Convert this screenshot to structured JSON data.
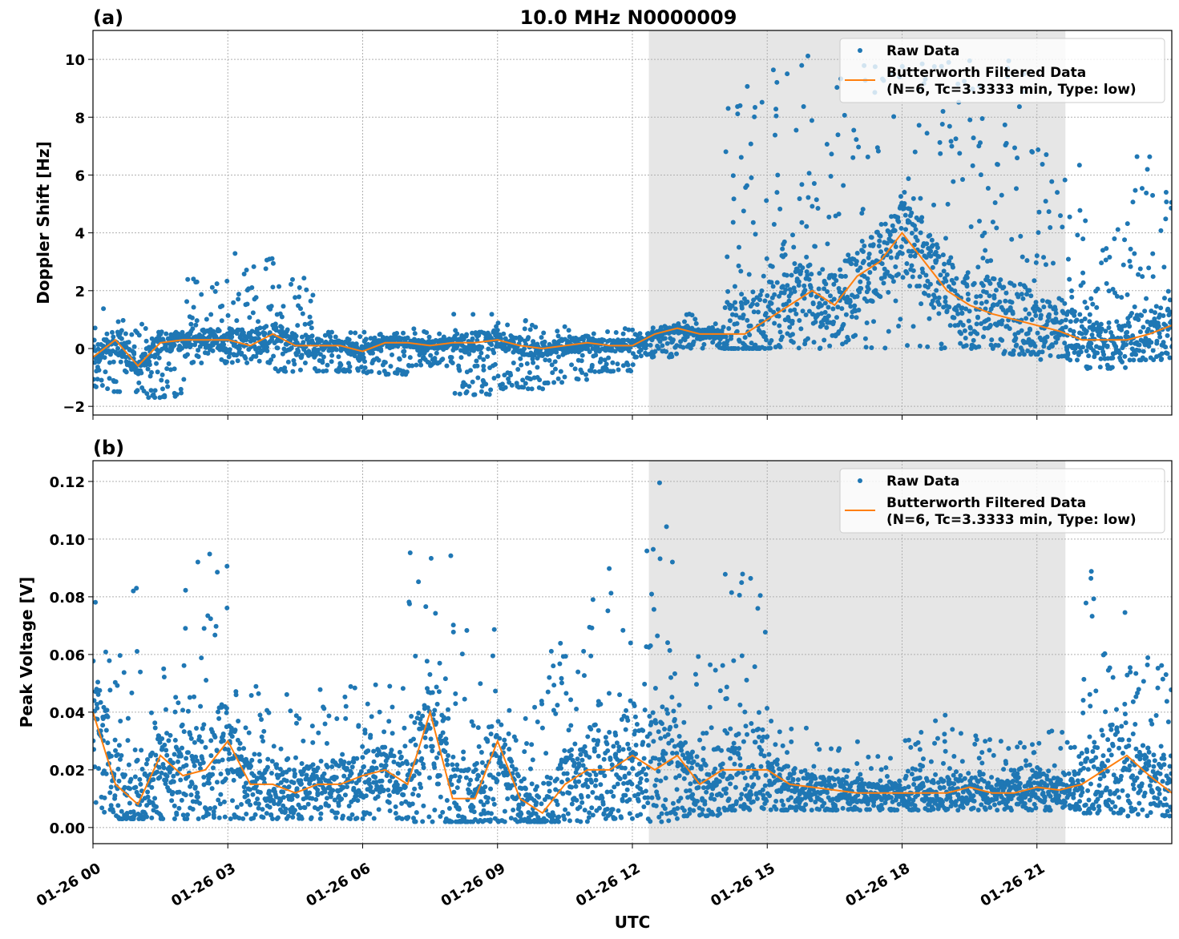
{
  "chart_data": [
    {
      "type": "scatter",
      "panel_label": "(a)",
      "title": "10.0 MHz N0000009",
      "xlabel": "",
      "ylabel": "Doppler Shift [Hz]",
      "xlim": [
        "01-26 00:00",
        "01-27 00:00"
      ],
      "ylim": [
        -2.3,
        11
      ],
      "yticks": [
        -2,
        0,
        2,
        4,
        6,
        8,
        10
      ],
      "ytick_labels": [
        "−2",
        "0",
        "2",
        "4",
        "6",
        "8",
        "10"
      ],
      "grid": true,
      "legend_placement": "top-right",
      "shaded_interval": [
        "01-26 12:22",
        "01-26 21:38"
      ],
      "colors": {
        "raw": "#1f77b4",
        "filtered": "#ff7f0e",
        "shade": "#e6e6e6"
      },
      "series": [
        {
          "name": "Raw Data",
          "kind": "points",
          "note_envelope_hours": [
            0,
            1,
            2,
            3,
            4,
            5,
            6,
            7,
            8,
            9,
            10,
            11,
            12,
            13,
            14,
            15,
            16,
            17,
            18,
            19,
            20,
            21,
            22,
            23
          ],
          "min": [
            -1.5,
            -1.7,
            -0.5,
            -0.5,
            -0.8,
            -0.8,
            -0.9,
            -0.6,
            -1.6,
            -1.4,
            -1.2,
            -0.8,
            -0.3,
            0.0,
            0.0,
            0.0,
            0.0,
            0.0,
            0.0,
            0.0,
            -0.2,
            -0.4,
            -0.7,
            -0.4
          ],
          "max": [
            1.4,
            1.0,
            2.6,
            3.4,
            2.5,
            0.6,
            0.6,
            0.7,
            1.2,
            1.0,
            0.8,
            0.8,
            0.9,
            1.2,
            9.2,
            10.3,
            9.5,
            10.3,
            10.0,
            10.0,
            10.0,
            7.0,
            4.5,
            6.9
          ]
        },
        {
          "name": "Butterworth Filtered Data\n(N=6, Tc=3.3333 min, Type: low)",
          "kind": "line",
          "values": [
            -0.3,
            0.3,
            -0.6,
            0.2,
            0.3,
            0.3,
            0.3,
            0.1,
            0.5,
            0.1,
            0.1,
            0.1,
            -0.1,
            0.2,
            0.2,
            0.1,
            0.2,
            0.2,
            0.3,
            0.1,
            0.0,
            0.1,
            0.2,
            0.1,
            0.1,
            0.5,
            0.7,
            0.5,
            0.5,
            0.5,
            1.0,
            1.5,
            2.0,
            1.5,
            2.5,
            3.0,
            4.0,
            3.0,
            2.0,
            1.5,
            1.2,
            1.0,
            0.8,
            0.6,
            0.3,
            0.3,
            0.3,
            0.5,
            0.8
          ]
        }
      ],
      "legend": [
        "Raw Data",
        "Butterworth Filtered Data",
        "(N=6, Tc=3.3333 min, Type: low)"
      ]
    },
    {
      "type": "scatter",
      "panel_label": "(b)",
      "xlabel": "UTC",
      "ylabel": "Peak Voltage [V]",
      "xlim": [
        "01-26 00:00",
        "01-27 00:00"
      ],
      "ylim": [
        -0.0056,
        0.1272
      ],
      "yticks": [
        0,
        0.02,
        0.04,
        0.06,
        0.08,
        0.1,
        0.12
      ],
      "ytick_labels": [
        "0.00",
        "0.02",
        "0.04",
        "0.06",
        "0.08",
        "0.10",
        "0.12"
      ],
      "xticks": [
        "01-26 00:00",
        "01-26 03:00",
        "01-26 06:00",
        "01-26 09:00",
        "01-26 12:00",
        "01-26 15:00",
        "01-26 18:00",
        "01-26 21:00"
      ],
      "xtick_labels": [
        "01-26 00",
        "01-26 03",
        "01-26 06",
        "01-26 09",
        "01-26 12",
        "01-26 15",
        "01-26 18",
        "01-26 21"
      ],
      "grid": true,
      "legend_placement": "top-right",
      "shaded_interval": [
        "01-26 12:22",
        "01-26 21:38"
      ],
      "colors": {
        "raw": "#1f77b4",
        "filtered": "#ff7f0e",
        "shade": "#e6e6e6"
      },
      "series": [
        {
          "name": "Raw Data",
          "kind": "points",
          "min": [
            0.003,
            0.003,
            0.003,
            0.003,
            0.003,
            0.003,
            0.003,
            0.002,
            0.002,
            0.002,
            0.002,
            0.003,
            0.002,
            0.004,
            0.006,
            0.006,
            0.006,
            0.006,
            0.006,
            0.006,
            0.006,
            0.006,
            0.005,
            0.004
          ],
          "max": [
            0.09,
            0.06,
            0.097,
            0.053,
            0.05,
            0.05,
            0.05,
            0.096,
            0.07,
            0.047,
            0.07,
            0.096,
            0.121,
            0.06,
            0.088,
            0.04,
            0.03,
            0.025,
            0.04,
            0.035,
            0.03,
            0.035,
            0.089,
            0.06
          ]
        },
        {
          "name": "Butterworth Filtered Data\n(N=6, Tc=3.3333 min, Type: low)",
          "kind": "line",
          "values": [
            0.04,
            0.015,
            0.008,
            0.025,
            0.018,
            0.02,
            0.03,
            0.015,
            0.015,
            0.012,
            0.015,
            0.015,
            0.018,
            0.02,
            0.015,
            0.04,
            0.01,
            0.01,
            0.03,
            0.01,
            0.005,
            0.015,
            0.02,
            0.02,
            0.025,
            0.02,
            0.025,
            0.015,
            0.02,
            0.02,
            0.02,
            0.015,
            0.014,
            0.013,
            0.012,
            0.012,
            0.012,
            0.012,
            0.012,
            0.014,
            0.012,
            0.012,
            0.014,
            0.013,
            0.015,
            0.02,
            0.025,
            0.018,
            0.012
          ]
        }
      ],
      "legend": [
        "Raw Data",
        "Butterworth Filtered Data",
        "(N=6, Tc=3.3333 min, Type: low)"
      ]
    }
  ],
  "filtered_time_step": "30 min"
}
